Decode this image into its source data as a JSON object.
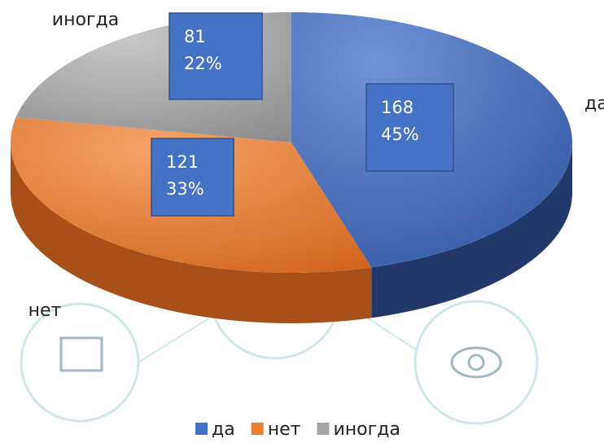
{
  "chart_data": {
    "type": "pie3d",
    "categories": [
      "да",
      "нет",
      "иногда"
    ],
    "values": [
      168,
      121,
      81
    ],
    "percentages": [
      45,
      33,
      22
    ],
    "colors": [
      "#4472c4",
      "#ed7d31",
      "#a5a5a5"
    ],
    "legend": "bottom"
  }
}
